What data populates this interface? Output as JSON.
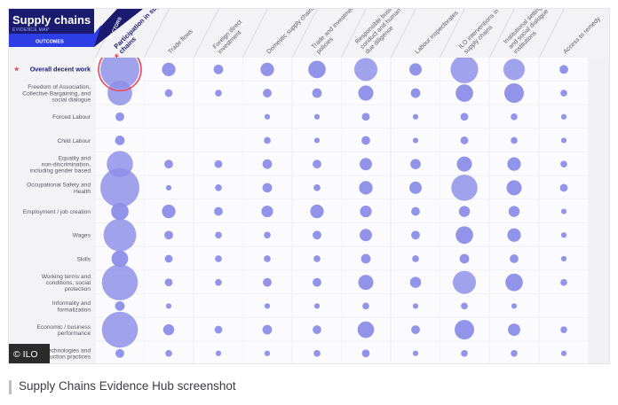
{
  "header": {
    "title": "Supply chains",
    "subtitle": "EVIDENCE MAP",
    "outcomes_label": "OUTCOMES",
    "factors_label": "FACTORS"
  },
  "caption": "Supply Chains Evidence Hub screenshot",
  "badge": "© ILO",
  "colors": {
    "navy": "#1a1a6e",
    "blue": "#2e3ee6",
    "bubble": "#8c8ee8",
    "highlight_ring": "#e8455a",
    "star": "#e8455a",
    "grid_bg": "#f1f1f4",
    "row_bg": "#fafafc"
  },
  "chart_data": {
    "type": "bubble-matrix",
    "title": "Supply chains evidence map",
    "size_scale": "relative evidence volume, 0-10 (read from bubble area)",
    "columns": [
      "Participation in supply chains",
      "Trade flows",
      "Foreign direct investment",
      "Domestic supply chains",
      "Trade and investment policies",
      "Responsible business conduct and human rights due diligence",
      "Labour inspectorates",
      "ILO interventions in supply chains",
      "Institutional settings and social dialogue institutions",
      "Access to remedy"
    ],
    "highlighted_column": 0,
    "rows": [
      {
        "label": "Overall decent work",
        "highlighted": true,
        "values": [
          10,
          1.2,
          0.6,
          1.2,
          2,
          3.5,
          1,
          5,
          3,
          0.5
        ]
      },
      {
        "label": "Freedom of Association, Collective Bargaining, and social dialogue",
        "values": [
          4,
          0.4,
          0.3,
          0.5,
          0.6,
          1.5,
          0.6,
          2,
          2.5,
          0.3
        ]
      },
      {
        "label": "Forced Labour",
        "values": [
          0.5,
          0,
          0,
          0.2,
          0.2,
          0.4,
          0.2,
          0.4,
          0.3,
          0.2
        ]
      },
      {
        "label": "Child Labour",
        "values": [
          0.6,
          0,
          0,
          0.3,
          0.2,
          0.5,
          0.2,
          0.4,
          0.3,
          0.2
        ]
      },
      {
        "label": "Equality and non-discrimination, including gender based",
        "values": [
          4.5,
          0.5,
          0.4,
          0.6,
          0.5,
          1,
          0.7,
          1.5,
          1.2,
          0.3
        ]
      },
      {
        "label": "Occupational Safety and Health",
        "values": [
          10,
          0.2,
          0.3,
          0.6,
          0.3,
          1.2,
          1,
          4.5,
          1.5,
          0.4
        ]
      },
      {
        "label": "Employment / job creation",
        "values": [
          2,
          1.2,
          0.5,
          0.9,
          1.2,
          0.9,
          0.5,
          0.8,
          0.8,
          0.2
        ]
      },
      {
        "label": "Wages",
        "values": [
          7,
          0.5,
          0.3,
          0.3,
          0.5,
          1,
          0.5,
          2,
          1.2,
          0.2
        ]
      },
      {
        "label": "Skills",
        "values": [
          1.8,
          0.4,
          0.3,
          0.3,
          0.3,
          0.6,
          0.3,
          0.6,
          0.5,
          0.2
        ]
      },
      {
        "label": "Working terms and conditions, social protection",
        "values": [
          8.5,
          0.4,
          0.3,
          0.5,
          0.5,
          1.5,
          0.8,
          3.5,
          2,
          0.3
        ]
      },
      {
        "label": "Informality and formalization",
        "values": [
          0.6,
          0.2,
          0,
          0.2,
          0.2,
          0.3,
          0.2,
          0.3,
          0.2,
          0
        ]
      },
      {
        "label": "Economic / business performance",
        "values": [
          8.5,
          0.8,
          0.4,
          0.6,
          0.5,
          1.8,
          0.5,
          2.5,
          1,
          0.3
        ]
      },
      {
        "label": "Technologies and production practices",
        "values": [
          0.5,
          0.3,
          0.2,
          0.2,
          0.3,
          0.4,
          0.2,
          0.3,
          0.3,
          0.2
        ]
      }
    ]
  }
}
